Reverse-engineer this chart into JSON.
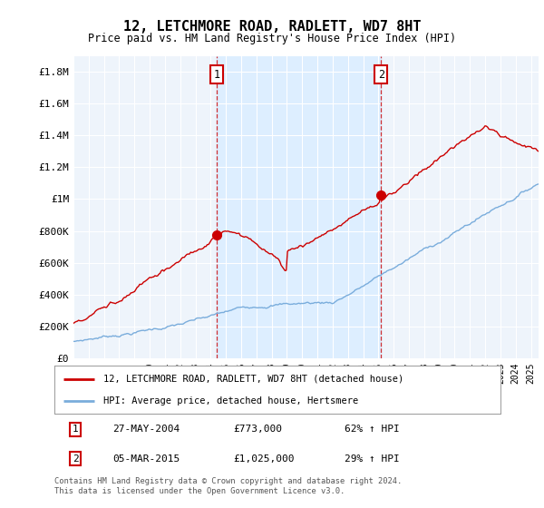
{
  "title": "12, LETCHMORE ROAD, RADLETT, WD7 8HT",
  "subtitle": "Price paid vs. HM Land Registry's House Price Index (HPI)",
  "ylabel_ticks": [
    "£0",
    "£200K",
    "£400K",
    "£600K",
    "£800K",
    "£1M",
    "£1.2M",
    "£1.4M",
    "£1.6M",
    "£1.8M"
  ],
  "ytick_values": [
    0,
    200000,
    400000,
    600000,
    800000,
    1000000,
    1200000,
    1400000,
    1600000,
    1800000
  ],
  "ylim": [
    0,
    1900000
  ],
  "xlim_start": 1995.0,
  "xlim_end": 2025.5,
  "sale1_x": 2004.41,
  "sale1_y": 773000,
  "sale1_label": "1",
  "sale2_x": 2015.17,
  "sale2_y": 1025000,
  "sale2_label": "2",
  "red_color": "#cc0000",
  "blue_color": "#7aaddc",
  "shade_color": "#ddeeff",
  "bg_color": "#eef4fb",
  "legend_label_red": "12, LETCHMORE ROAD, RADLETT, WD7 8HT (detached house)",
  "legend_label_blue": "HPI: Average price, detached house, Hertsmere",
  "table_row1": [
    "1",
    "27-MAY-2004",
    "£773,000",
    "62% ↑ HPI"
  ],
  "table_row2": [
    "2",
    "05-MAR-2015",
    "£1,025,000",
    "29% ↑ HPI"
  ],
  "footer": "Contains HM Land Registry data © Crown copyright and database right 2024.\nThis data is licensed under the Open Government Licence v3.0."
}
